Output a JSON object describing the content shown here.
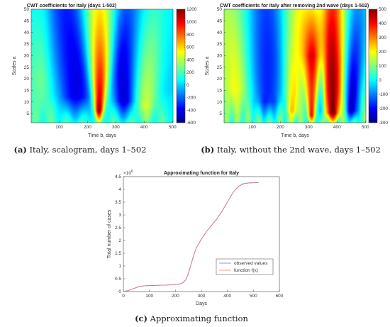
{
  "chart_data": [
    {
      "type": "heatmap",
      "title": "CWT coefficients for Italy (days 1-502)",
      "xlabel": "Time b, days",
      "ylabel": "Scales a",
      "xlim": [
        1,
        502
      ],
      "ylim": [
        1,
        50
      ],
      "xticks": [
        100,
        200,
        300,
        400,
        500
      ],
      "yticks": [
        5,
        10,
        15,
        20,
        25,
        30,
        35,
        40,
        45,
        50
      ],
      "colorbar": {
        "min": -600,
        "max": 1200,
        "ticks": [
          1200,
          1000,
          800,
          600,
          400,
          200,
          0,
          -200,
          -400,
          -600
        ],
        "colormap": "jet"
      },
      "caption_label": "(a)",
      "caption_text": "Italy, scalogram, days 1–502",
      "features": [
        {
          "day": 240,
          "scale_max": 48,
          "value_max": 1200,
          "kind": "positive ridge"
        },
        {
          "day": 150,
          "scale_max": 50,
          "value_min": -400,
          "kind": "negative band"
        },
        {
          "day": 330,
          "scale_max": 50,
          "value_min": -450,
          "kind": "negative band"
        },
        {
          "day": 400,
          "scale_max": 50,
          "value_max": 450,
          "kind": "positive band"
        }
      ]
    },
    {
      "type": "heatmap",
      "title": "CWT coefficients for Italy after removing 2nd wave (days 1-502)",
      "xlabel": "Time b, days",
      "ylabel": "Scales a",
      "xlim": [
        1,
        502
      ],
      "ylim": [
        1,
        50
      ],
      "xticks": [
        100,
        200,
        300,
        400,
        500
      ],
      "yticks": [
        5,
        10,
        15,
        20,
        25,
        30,
        35,
        40,
        45,
        50
      ],
      "colorbar": {
        "min": -300,
        "max": 500,
        "ticks": [
          500,
          400,
          300,
          200,
          100,
          0,
          -100,
          -200,
          -300
        ],
        "colormap": "jet"
      },
      "caption_label": "(b)",
      "caption_text": "Italy, without the 2nd wave, days 1–502",
      "features": [
        {
          "day": 385,
          "scale_max": 50,
          "value_max": 500,
          "kind": "positive ridge"
        },
        {
          "day": 310,
          "scale_max": 25,
          "value_max": 350,
          "kind": "positive ridge"
        },
        {
          "day": 240,
          "scale_max": 30,
          "value_max": 200,
          "kind": "positive ridge"
        },
        {
          "day": 150,
          "scale_max": 50,
          "value_min": -250,
          "kind": "negative band"
        },
        {
          "day": 460,
          "scale_max": 50,
          "value_min": -280,
          "kind": "negative band"
        }
      ]
    },
    {
      "type": "line",
      "title": "Approximating function for Italy",
      "xlabel": "Days",
      "ylabel": "Total number of cases",
      "xlim": [
        0,
        600
      ],
      "ylim": [
        0,
        4500000
      ],
      "y_multiplier_label": "×10",
      "y_multiplier_exp": "6",
      "xticks": [
        0,
        100,
        200,
        300,
        400,
        500,
        600
      ],
      "yticks": [
        0,
        0.5,
        1,
        1.5,
        2,
        2.5,
        3,
        3.5,
        4,
        4.5
      ],
      "legend_position": "bottom-right",
      "caption_label": "(c)",
      "caption_text": "Approximating function",
      "series": [
        {
          "name": "observed values",
          "color": "#7070d8",
          "x": [
            0,
            20,
            40,
            60,
            80,
            100,
            120,
            140,
            160,
            180,
            200,
            220,
            230,
            240,
            250,
            260,
            270,
            280,
            300,
            320,
            340,
            360,
            380,
            400,
            420,
            440,
            460,
            480,
            500,
            520
          ],
          "y": [
            0,
            40000,
            120000,
            195000,
            225000,
            235000,
            240000,
            245000,
            252000,
            260000,
            270000,
            300000,
            350000,
            460000,
            700000,
            1050000,
            1400000,
            1700000,
            2050000,
            2350000,
            2600000,
            2850000,
            3150000,
            3500000,
            3850000,
            4100000,
            4220000,
            4250000,
            4260000,
            4260000
          ]
        },
        {
          "name": "function f(x)",
          "color": "#e08080",
          "x": [
            0,
            20,
            40,
            60,
            80,
            100,
            120,
            140,
            160,
            180,
            200,
            220,
            230,
            240,
            250,
            260,
            270,
            280,
            300,
            320,
            340,
            360,
            380,
            400,
            420,
            440,
            460,
            480,
            500,
            520
          ],
          "y": [
            0,
            42000,
            118000,
            192000,
            223000,
            234000,
            240000,
            246000,
            253000,
            261000,
            272000,
            305000,
            355000,
            470000,
            710000,
            1060000,
            1410000,
            1705000,
            2055000,
            2350000,
            2605000,
            2855000,
            3155000,
            3505000,
            3850000,
            4095000,
            4215000,
            4250000,
            4260000,
            4262000
          ]
        }
      ]
    }
  ]
}
